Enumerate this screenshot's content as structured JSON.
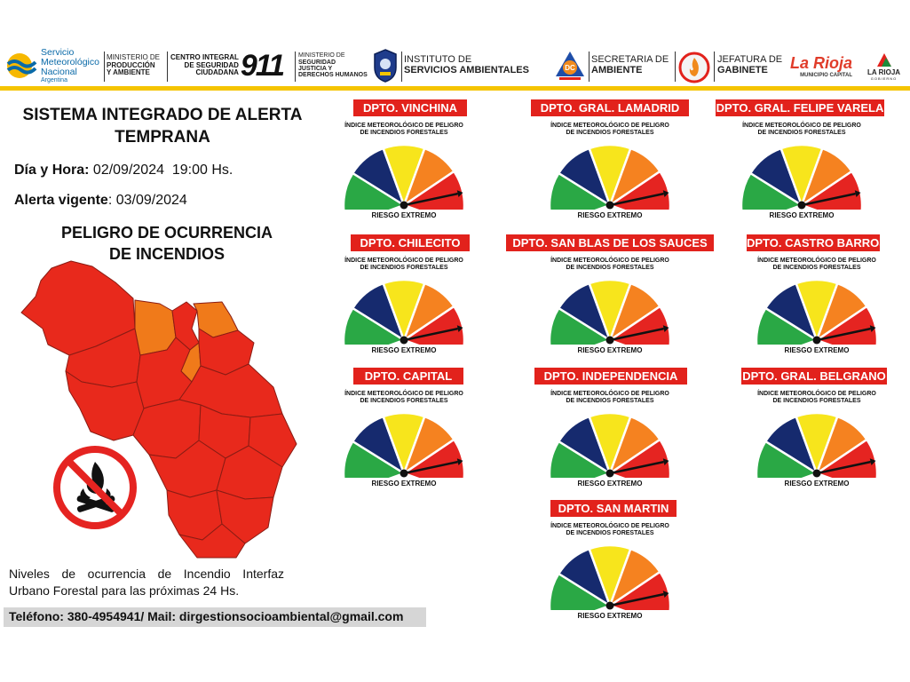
{
  "header": {
    "smn": {
      "line1": "Servicio",
      "line2": "Meteorológico",
      "line3": "Nacional",
      "line4": "Argentina"
    },
    "produccion": {
      "line1": "MINISTERIO DE",
      "line2": "PRODUCCIÓN",
      "line3": "Y AMBIENTE"
    },
    "centro911": {
      "line1": "CENTRO INTEGRAL",
      "line2": "DE SEGURIDAD",
      "line3": "CIUDADANA",
      "number": "911"
    },
    "seguridad": {
      "line1": "MINISTERIO DE",
      "line2": "SEGURIDAD",
      "line3": "JUSTICIA Y",
      "line4": "DERECHOS HUMANOS"
    },
    "instituto": {
      "line1": "INSTITUTO DE",
      "line2": "SERVICIOS AMBIENTALES"
    },
    "secretaria": {
      "line1": "SECRETARIA DE",
      "line2": "AMBIENTE"
    },
    "jefatura": {
      "line1": "JEFATURA DE",
      "line2": "GABINETE"
    },
    "larioja_capital": {
      "brand": "La Rioja",
      "sub": "MUNICIPIO CAPITAL"
    },
    "larioja_gobierno": {
      "brand": "LA RIOJA",
      "sub": "GOBIERNO"
    }
  },
  "left": {
    "title_line1": "SISTEMA INTEGRADO DE ALERTA",
    "title_line2": "TEMPRANA",
    "datetime_label": "Día y Hora:",
    "datetime_value": " 02/09/2024  19:00 Hs.",
    "alert_label": "Alerta vigente",
    "alert_value": ": 03/09/2024",
    "peligro_line1": "PELIGRO DE OCURRENCIA",
    "peligro_line2": "DE INCENDIOS",
    "legend": "Niveles de ocurrencia de Incendio Interfaz Urbano Forestal para las próximas 24 Hs.",
    "contact": "Teléfono:  380-4954941/ Mail: dirgestionsocioambiental@gmail.com"
  },
  "gauge_index_line1": "ÍNDICE METEOROLÓGICO DE PELIGRO",
  "gauge_index_line2": "DE INCENDIOS FORESTALES",
  "gauges": [
    {
      "dept": "DPTO. VINCHINA",
      "risk": "RIESGO EXTREMO"
    },
    {
      "dept": "DPTO. GRAL. LAMADRID",
      "risk": "RIESGO EXTREMO"
    },
    {
      "dept": "DPTO. GRAL. FELIPE VARELA",
      "risk": "RIESGO EXTREMO"
    },
    {
      "dept": "DPTO. CHILECITO",
      "risk": "RIESGO EXTREMO"
    },
    {
      "dept": "DPTO. SAN BLAS DE LOS SAUCES",
      "risk": "RIESGO EXTREMO"
    },
    {
      "dept": "DPTO. CASTRO BARROS",
      "risk": "RIESGO EXTREMO"
    },
    {
      "dept": "DPTO. CAPITAL",
      "risk": "RIESGO EXTREMO"
    },
    {
      "dept": "DPTO. INDEPENDENCIA",
      "risk": "RIESGO EXTREMO"
    },
    {
      "dept": "DPTO. GRAL. BELGRANO",
      "risk": "RIESGO EXTREMO"
    },
    {
      "dept": "DPTO. SAN MARTIN",
      "risk": "RIESGO EXTREMO"
    }
  ],
  "gauge_colors": [
    "#2aa845",
    "#162a6e",
    "#f7e51c",
    "#f58220",
    "#e52421"
  ],
  "map_colors": {
    "extreme": "#e8291c",
    "high": "#f07a1a",
    "border": "#8a1c14"
  },
  "no_fire_sign_color": "#e52421"
}
